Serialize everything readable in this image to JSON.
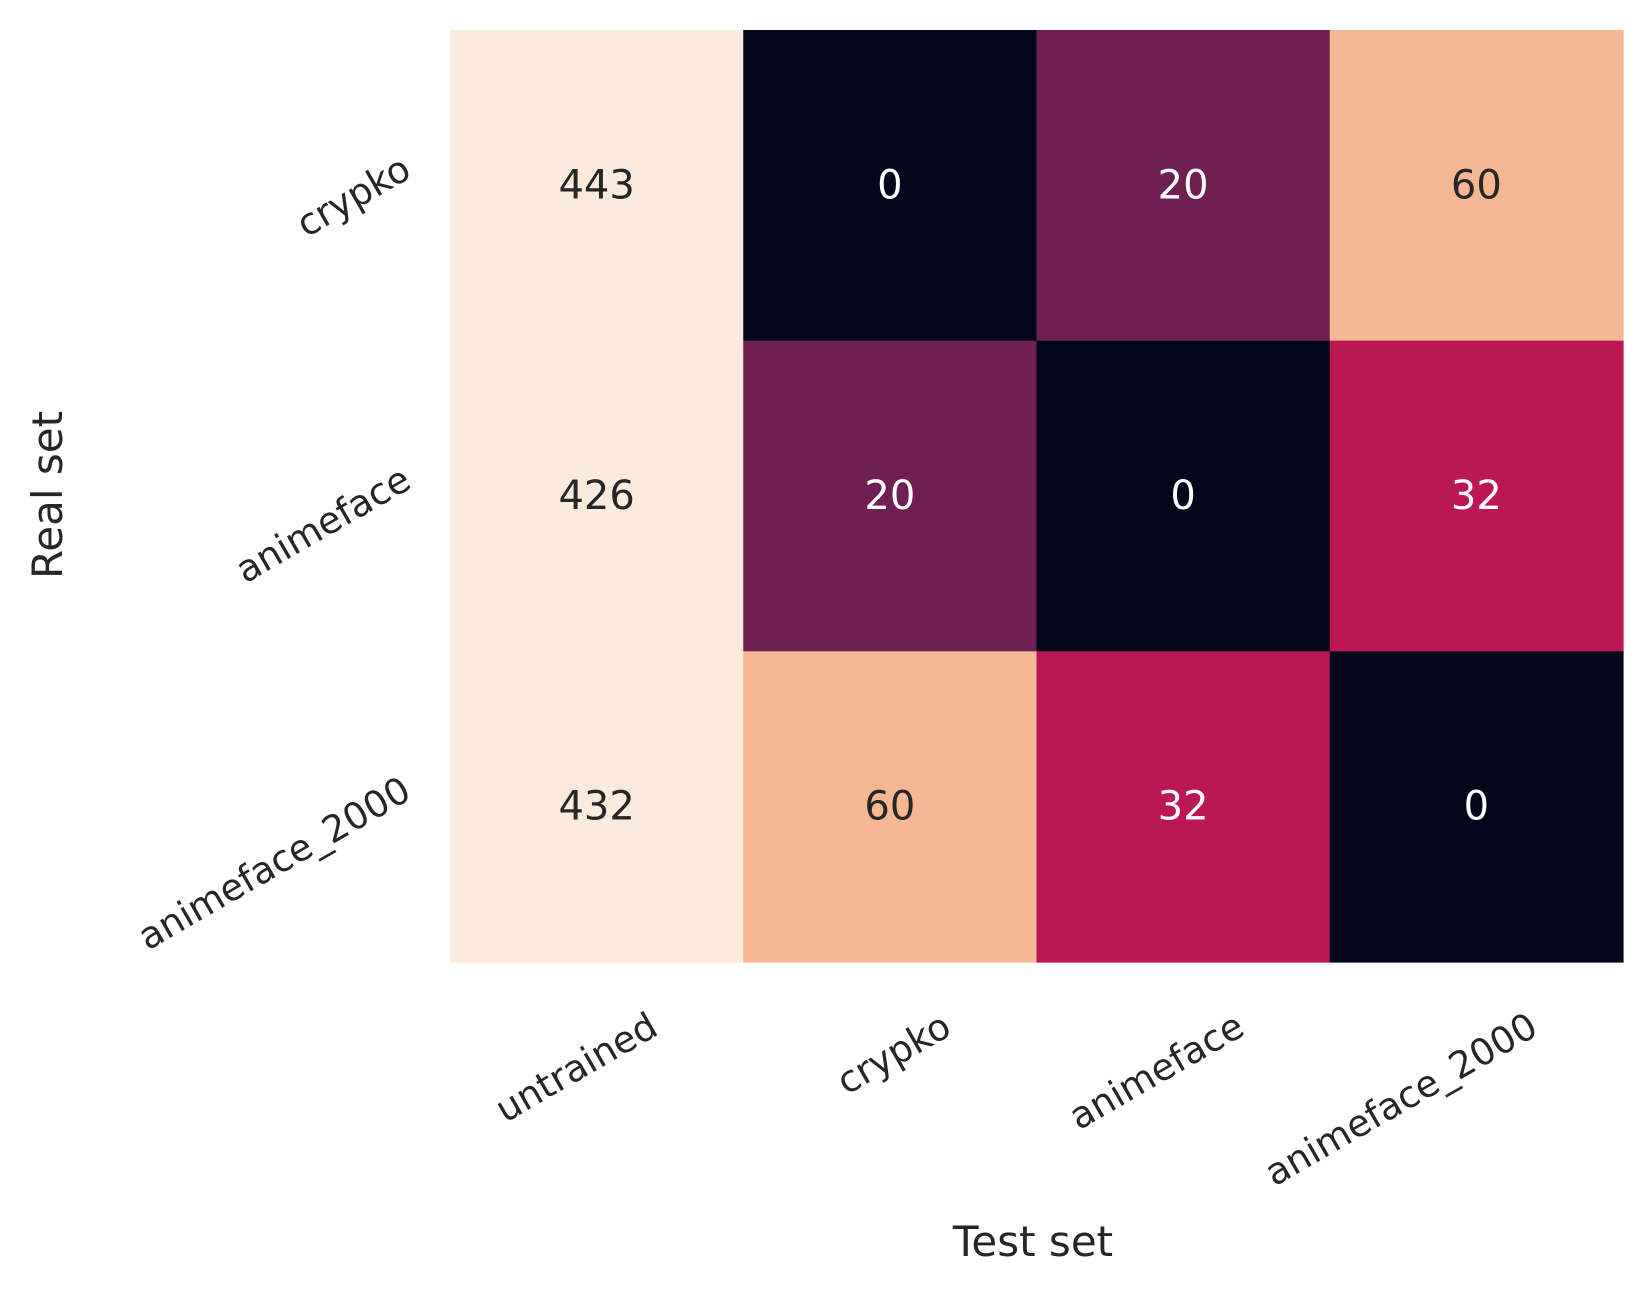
{
  "chart_data": {
    "type": "heatmap",
    "title": "",
    "xlabel": "Test set",
    "ylabel": "Real set",
    "x_categories": [
      "untrained",
      "crypko",
      "animeface",
      "animeface_2000"
    ],
    "y_categories": [
      "crypko",
      "animeface",
      "animeface_2000"
    ],
    "values": [
      [
        443,
        0,
        20,
        60
      ],
      [
        426,
        20,
        0,
        32
      ],
      [
        432,
        60,
        32,
        0
      ]
    ],
    "colormap": "rocket",
    "colorbar": false,
    "cell_colors": {
      "0": "#03051a",
      "20": "#701f53",
      "32": "#bb1753",
      "60": "#f5b794",
      "high": "#faebdd"
    },
    "text_colors": {
      "dark_cells": "#ffffff",
      "light_cells": "#262626"
    }
  }
}
